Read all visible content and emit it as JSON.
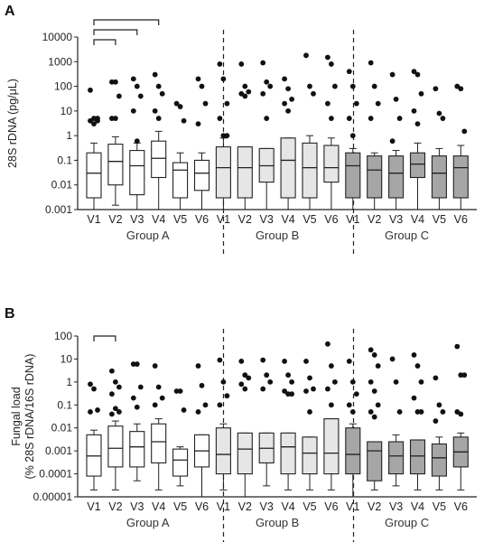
{
  "chart_data": [
    {
      "panel_label": "A",
      "type": "boxplot",
      "ylabel": "28S rDNA (pg/μL)",
      "yscale": "log",
      "ylim": [
        0.001,
        10000
      ],
      "yticks": [
        "0.001",
        "0.01",
        "0.1",
        "1",
        "10",
        "100",
        "1000",
        "10000"
      ],
      "groups": [
        "Group A",
        "Group B",
        "Group C"
      ],
      "categories": [
        "V1",
        "V2",
        "V3",
        "V4",
        "V5",
        "V6"
      ],
      "boxes": [
        {
          "group": "Group A",
          "visit": "V1",
          "fill": "#ffffff",
          "whisker_low": 0.001,
          "q1": 0.003,
          "median": 0.03,
          "q3": 0.2,
          "whisker_high": 0.5,
          "outliers": [
            70,
            5,
            4,
            4,
            3,
            5
          ]
        },
        {
          "group": "Group A",
          "visit": "V2",
          "fill": "#ffffff",
          "whisker_low": 0.0015,
          "q1": 0.01,
          "median": 0.09,
          "q3": 0.45,
          "whisker_high": 0.9,
          "outliers": [
            150,
            150,
            40,
            5,
            5
          ]
        },
        {
          "group": "Group A",
          "visit": "V3",
          "fill": "#ffffff",
          "whisker_low": 0.001,
          "q1": 0.004,
          "median": 0.06,
          "q3": 0.25,
          "whisker_high": 0.5,
          "outliers": [
            200,
            100,
            40,
            10,
            0.6
          ]
        },
        {
          "group": "Group A",
          "visit": "V4",
          "fill": "#ffffff",
          "whisker_low": 0.001,
          "q1": 0.02,
          "median": 0.12,
          "q3": 0.6,
          "whisker_high": 1.5,
          "outliers": [
            300,
            100,
            50,
            10,
            5
          ]
        },
        {
          "group": "Group A",
          "visit": "V5",
          "fill": "#ffffff",
          "whisker_low": 0.001,
          "q1": 0.003,
          "median": 0.04,
          "q3": 0.08,
          "whisker_high": 0.2,
          "outliers": [
            20,
            15,
            4
          ]
        },
        {
          "group": "Group A",
          "visit": "V6",
          "fill": "#ffffff",
          "whisker_low": 0.001,
          "q1": 0.006,
          "median": 0.03,
          "q3": 0.1,
          "whisker_high": 0.2,
          "outliers": [
            200,
            100,
            20,
            3
          ]
        },
        {
          "group": "Group B",
          "visit": "V1",
          "fill": "#e6e6e6",
          "whisker_low": 0.001,
          "q1": 0.003,
          "median": 0.05,
          "q3": 0.35,
          "whisker_high": 0.8,
          "outliers": [
            800,
            200,
            20,
            5,
            1,
            1
          ]
        },
        {
          "group": "Group B",
          "visit": "V2",
          "fill": "#e6e6e6",
          "whisker_low": 0.001,
          "q1": 0.003,
          "median": 0.05,
          "q3": 0.35,
          "whisker_high": 0.35,
          "outliers": [
            800,
            100,
            60,
            50,
            40
          ]
        },
        {
          "group": "Group B",
          "visit": "V3",
          "fill": "#e6e6e6",
          "whisker_low": 0.001,
          "q1": 0.013,
          "median": 0.06,
          "q3": 0.3,
          "whisker_high": 0.3,
          "outliers": [
            900,
            150,
            100,
            50,
            5
          ]
        },
        {
          "group": "Group B",
          "visit": "V4",
          "fill": "#e6e6e6",
          "whisker_low": 0.001,
          "q1": 0.003,
          "median": 0.1,
          "q3": 0.8,
          "whisker_high": 0.8,
          "outliers": [
            200,
            80,
            30,
            20,
            10
          ]
        },
        {
          "group": "Group B",
          "visit": "V5",
          "fill": "#e6e6e6",
          "whisker_low": 0.001,
          "q1": 0.003,
          "median": 0.05,
          "q3": 0.5,
          "whisker_high": 1,
          "outliers": [
            1800,
            100,
            50
          ]
        },
        {
          "group": "Group B",
          "visit": "V6",
          "fill": "#e6e6e6",
          "whisker_low": 0.001,
          "q1": 0.013,
          "median": 0.05,
          "q3": 0.4,
          "whisker_high": 0.8,
          "outliers": [
            1500,
            800,
            100,
            20,
            5
          ]
        },
        {
          "group": "Group C",
          "visit": "V1",
          "fill": "#a6a6a6",
          "whisker_low": 0.001,
          "q1": 0.003,
          "median": 0.06,
          "q3": 0.2,
          "whisker_high": 0.3,
          "outliers": [
            400,
            100,
            20,
            5,
            1
          ]
        },
        {
          "group": "Group C",
          "visit": "V2",
          "fill": "#a6a6a6",
          "whisker_low": 0.001,
          "q1": 0.003,
          "median": 0.04,
          "q3": 0.15,
          "whisker_high": 0.2,
          "outliers": [
            900,
            100,
            20,
            5
          ]
        },
        {
          "group": "Group C",
          "visit": "V3",
          "fill": "#a6a6a6",
          "whisker_low": 0.001,
          "q1": 0.003,
          "median": 0.03,
          "q3": 0.15,
          "whisker_high": 0.25,
          "outliers": [
            300,
            30,
            5,
            0.6
          ]
        },
        {
          "group": "Group C",
          "visit": "V4",
          "fill": "#a6a6a6",
          "whisker_low": 0.001,
          "q1": 0.02,
          "median": 0.07,
          "q3": 0.2,
          "whisker_high": 0.5,
          "outliers": [
            400,
            300,
            50,
            10,
            3
          ]
        },
        {
          "group": "Group C",
          "visit": "V5",
          "fill": "#a6a6a6",
          "whisker_low": 0.001,
          "q1": 0.003,
          "median": 0.03,
          "q3": 0.15,
          "whisker_high": 0.3,
          "outliers": [
            80,
            8,
            5
          ]
        },
        {
          "group": "Group C",
          "visit": "V6",
          "fill": "#a6a6a6",
          "whisker_low": 0.001,
          "q1": 0.003,
          "median": 0.05,
          "q3": 0.15,
          "whisker_high": 0.4,
          "outliers": [
            100,
            80,
            1.5
          ]
        }
      ],
      "brackets": [
        [
          "Group A V1",
          "Group A V2"
        ],
        [
          "Group A V1",
          "Group A V3"
        ],
        [
          "Group A V1",
          "Group A V4"
        ]
      ]
    },
    {
      "panel_label": "B",
      "type": "boxplot",
      "ylabel": "Fungal load (% 28S rDNA/16S rDNA)",
      "yscale": "log",
      "ylim": [
        1e-05,
        100
      ],
      "yticks": [
        "0.00001",
        "0.0001",
        "0.001",
        "0.01",
        "0.1",
        "1",
        "10",
        "100"
      ],
      "groups": [
        "Group A",
        "Group B",
        "Group C"
      ],
      "categories": [
        "V1",
        "V2",
        "V3",
        "V4",
        "V5",
        "V6"
      ],
      "boxes": [
        {
          "group": "Group A",
          "visit": "V1",
          "fill": "#ffffff",
          "whisker_low": 2e-05,
          "q1": 8e-05,
          "median": 0.0006,
          "q3": 0.005,
          "whisker_high": 0.008,
          "outliers": [
            0.8,
            0.5,
            0.06,
            0.05
          ]
        },
        {
          "group": "Group A",
          "visit": "V2",
          "fill": "#ffffff",
          "whisker_low": 2e-05,
          "q1": 0.0002,
          "median": 0.0013,
          "q3": 0.012,
          "whisker_high": 0.02,
          "outliers": [
            3,
            1,
            0.6,
            0.3,
            0.07,
            0.05,
            0.04
          ]
        },
        {
          "group": "Group A",
          "visit": "V3",
          "fill": "#ffffff",
          "whisker_low": 5e-05,
          "q1": 0.0002,
          "median": 0.0015,
          "q3": 0.007,
          "whisker_high": 0.015,
          "outliers": [
            6,
            6,
            0.6,
            0.2,
            0.08
          ]
        },
        {
          "group": "Group A",
          "visit": "V4",
          "fill": "#ffffff",
          "whisker_low": 2e-05,
          "q1": 0.0003,
          "median": 0.0025,
          "q3": 0.015,
          "whisker_high": 0.025,
          "outliers": [
            5,
            0.6,
            0.2,
            0.1
          ]
        },
        {
          "group": "Group A",
          "visit": "V5",
          "fill": "#ffffff",
          "whisker_low": 3e-05,
          "q1": 8e-05,
          "median": 0.0004,
          "q3": 0.0012,
          "whisker_high": 0.0015,
          "outliers": [
            0.4,
            0.4,
            0.06
          ]
        },
        {
          "group": "Group A",
          "visit": "V6",
          "fill": "#ffffff",
          "whisker_low": 1e-05,
          "q1": 0.0002,
          "median": 0.001,
          "q3": 0.005,
          "whisker_high": 0.005,
          "outliers": [
            5,
            0.7,
            0.1,
            0.05
          ]
        },
        {
          "group": "Group B",
          "visit": "V1",
          "fill": "#e6e6e6",
          "whisker_low": 2e-05,
          "q1": 0.0001,
          "median": 0.0007,
          "q3": 0.01,
          "whisker_high": 0.015,
          "outliers": [
            9,
            1,
            0.25,
            0.1
          ]
        },
        {
          "group": "Group B",
          "visit": "V2",
          "fill": "#e6e6e6",
          "whisker_low": 1e-05,
          "q1": 0.0001,
          "median": 0.0012,
          "q3": 0.006,
          "whisker_high": 0.006,
          "outliers": [
            8,
            2,
            1.5,
            0.8,
            0.5
          ]
        },
        {
          "group": "Group B",
          "visit": "V3",
          "fill": "#e6e6e6",
          "whisker_low": 3e-05,
          "q1": 0.0003,
          "median": 0.0013,
          "q3": 0.006,
          "whisker_high": 0.006,
          "outliers": [
            9,
            2,
            1,
            0.5
          ]
        },
        {
          "group": "Group B",
          "visit": "V4",
          "fill": "#e6e6e6",
          "whisker_low": 2e-05,
          "q1": 0.0001,
          "median": 0.0015,
          "q3": 0.006,
          "whisker_high": 0.006,
          "outliers": [
            8,
            2,
            1,
            0.4,
            0.3,
            0.3
          ]
        },
        {
          "group": "Group B",
          "visit": "V5",
          "fill": "#e6e6e6",
          "whisker_low": 2e-05,
          "q1": 0.0001,
          "median": 0.0008,
          "q3": 0.004,
          "whisker_high": 0.004,
          "outliers": [
            8,
            1.5,
            0.5,
            0.4,
            0.05
          ]
        },
        {
          "group": "Group B",
          "visit": "V6",
          "fill": "#e6e6e6",
          "whisker_low": 2e-05,
          "q1": 0.0001,
          "median": 0.0008,
          "q3": 0.025,
          "whisker_high": 0.025,
          "outliers": [
            45,
            5,
            1,
            0.5,
            0.1
          ]
        },
        {
          "group": "Group C",
          "visit": "V1",
          "fill": "#a6a6a6",
          "whisker_low": 1e-05,
          "q1": 0.0001,
          "median": 0.0007,
          "q3": 0.01,
          "whisker_high": 0.015,
          "outliers": [
            8,
            1,
            0.3,
            0.1,
            0.05
          ]
        },
        {
          "group": "Group C",
          "visit": "V2",
          "fill": "#a6a6a6",
          "whisker_low": 2e-05,
          "q1": 5e-05,
          "median": 0.001,
          "q3": 0.0025,
          "whisker_high": 0.0025,
          "outliers": [
            25,
            15,
            5,
            1,
            0.4,
            0.1,
            0.05,
            0.03
          ]
        },
        {
          "group": "Group C",
          "visit": "V3",
          "fill": "#a6a6a6",
          "whisker_low": 3e-05,
          "q1": 0.0001,
          "median": 0.0006,
          "q3": 0.0025,
          "whisker_high": 0.005,
          "outliers": [
            10,
            1,
            0.05
          ]
        },
        {
          "group": "Group C",
          "visit": "V4",
          "fill": "#a6a6a6",
          "whisker_low": 2e-05,
          "q1": 0.0001,
          "median": 0.0006,
          "q3": 0.003,
          "whisker_high": 0.003,
          "outliers": [
            15,
            5,
            1,
            0.2,
            0.05,
            0.05
          ]
        },
        {
          "group": "Group C",
          "visit": "V5",
          "fill": "#a6a6a6",
          "whisker_low": 2e-05,
          "q1": 8e-05,
          "median": 0.0005,
          "q3": 0.002,
          "whisker_high": 0.004,
          "outliers": [
            1.5,
            0.1,
            0.05,
            0.02
          ]
        },
        {
          "group": "Group C",
          "visit": "V6",
          "fill": "#a6a6a6",
          "whisker_low": 2e-05,
          "q1": 0.0002,
          "median": 0.0009,
          "q3": 0.004,
          "whisker_high": 0.006,
          "outliers": [
            35,
            2,
            2,
            0.05,
            0.04
          ]
        }
      ],
      "brackets": [
        [
          "Group A V1",
          "Group A V2"
        ]
      ]
    }
  ]
}
